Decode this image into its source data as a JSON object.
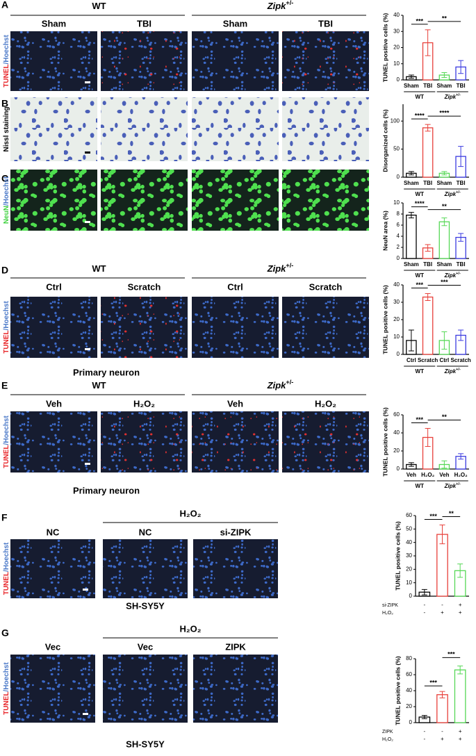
{
  "figure": {
    "panels": [
      {
        "letter": "A",
        "stain": [
          {
            "text": "TUNEL",
            "color": "#e8262a"
          },
          {
            "text": "/Hoechst",
            "color": "#4a78c8"
          }
        ],
        "groups": [
          {
            "name": "WT"
          },
          {
            "name": "Zipk",
            "sup": "+/-"
          }
        ],
        "conditions": [
          "Sham",
          "TBI",
          "Sham",
          "TBI"
        ]
      },
      {
        "letter": "B",
        "stain": [
          {
            "text": "Nissl staining",
            "color": "#000000"
          }
        ]
      },
      {
        "letter": "C",
        "stain": [
          {
            "text": "NeuN",
            "color": "#3fd23f"
          },
          {
            "text": "/Hoechst",
            "color": "#4a78c8"
          }
        ]
      },
      {
        "letter": "D",
        "stain": [
          {
            "text": "TUNEL",
            "color": "#e8262a"
          },
          {
            "text": "/Hoechst",
            "color": "#4a78c8"
          }
        ],
        "groups": [
          {
            "name": "WT"
          },
          {
            "name": "Zipk",
            "sup": "+/-"
          }
        ],
        "conditions": [
          "Ctrl",
          "Scratch",
          "Ctrl",
          "Scratch"
        ],
        "caption": "Primary neuron"
      },
      {
        "letter": "E",
        "stain": [
          {
            "text": "TUNEL",
            "color": "#e8262a"
          },
          {
            "text": "/Hoechst",
            "color": "#4a78c8"
          }
        ],
        "groups": [
          {
            "name": "WT"
          },
          {
            "name": "Zipk",
            "sup": "+/-"
          }
        ],
        "conditions": [
          "Veh",
          "H₂O₂",
          "Veh",
          "H₂O₂"
        ],
        "caption": "Primary neuron"
      },
      {
        "letter": "F",
        "stain": [
          {
            "text": "TUNEL",
            "color": "#e8262a"
          },
          {
            "text": "/Hoechst",
            "color": "#4a78c8"
          }
        ],
        "treatment": "H₂O₂",
        "conditions": [
          "NC",
          "NC",
          "si-ZIPK"
        ],
        "caption": "SH-SY5Y"
      },
      {
        "letter": "G",
        "stain": [
          {
            "text": "TUNEL",
            "color": "#e8262a"
          },
          {
            "text": "/Hoechst",
            "color": "#4a78c8"
          }
        ],
        "treatment": "H₂O₂",
        "conditions": [
          "Vec",
          "Vec",
          "ZIPK"
        ],
        "caption": "SH-SY5Y"
      }
    ]
  },
  "chart_data": [
    {
      "type": "bar",
      "ylabel": "TUNEL positive cells (%)",
      "categories": [
        "Sham",
        "TBI",
        "Sham",
        "TBI"
      ],
      "values": [
        2,
        23,
        3,
        8
      ],
      "errors": [
        1,
        8,
        1.5,
        4
      ],
      "colors": [
        "#000000",
        "#e8403a",
        "#55d855",
        "#3a3ae0"
      ],
      "ylim": [
        0,
        40
      ],
      "yticks": [
        0,
        10,
        20,
        30,
        40
      ],
      "groups": [
        {
          "name": "WT"
        },
        {
          "name": "Zipk",
          "sup": "+/-"
        }
      ],
      "significance": [
        "***",
        "**"
      ]
    },
    {
      "type": "bar",
      "ylabel": "Disorganized cells (%)",
      "categories": [
        "Sham",
        "TBI",
        "Sham",
        "TBI"
      ],
      "values": [
        7,
        88,
        7,
        37
      ],
      "errors": [
        3,
        6,
        3,
        18
      ],
      "colors": [
        "#000000",
        "#e8403a",
        "#55d855",
        "#3a3ae0"
      ],
      "ylim": [
        0,
        130
      ],
      "yticks": [
        0,
        50,
        100
      ],
      "groups": [
        {
          "name": "WT"
        },
        {
          "name": "Zipk",
          "sup": "+/-"
        }
      ],
      "significance": [
        "****",
        "****"
      ]
    },
    {
      "type": "bar",
      "ylabel": "NeuN area (%)",
      "categories": [
        "Sham",
        "TBI",
        "Sham",
        "TBI"
      ],
      "values": [
        7.8,
        1.9,
        6.6,
        3.8
      ],
      "errors": [
        0.5,
        0.6,
        0.7,
        0.7
      ],
      "colors": [
        "#000000",
        "#e8403a",
        "#55d855",
        "#3a3ae0"
      ],
      "ylim": [
        0,
        10
      ],
      "yticks": [
        0,
        2,
        4,
        6,
        8,
        10
      ],
      "groups": [
        {
          "name": "WT"
        },
        {
          "name": "Zipk",
          "sup": "+/-"
        }
      ],
      "significance": [
        "****",
        "**"
      ]
    },
    {
      "type": "bar",
      "ylabel": "TUNEL positive cells (%)",
      "categories": [
        "Ctrl",
        "Scratch",
        "Ctrl",
        "Scratch"
      ],
      "values": [
        8,
        33,
        8,
        11
      ],
      "errors": [
        6,
        2,
        5,
        3
      ],
      "colors": [
        "#000000",
        "#e8403a",
        "#55d855",
        "#3a3ae0"
      ],
      "ylim": [
        0,
        40
      ],
      "yticks": [
        0,
        10,
        20,
        30,
        40
      ],
      "groups": [
        {
          "name": "WT"
        },
        {
          "name": "Zipk",
          "sup": "+/-"
        }
      ],
      "significance": [
        "***",
        "***"
      ]
    },
    {
      "type": "bar",
      "ylabel": "TUNEL positive cells (%)",
      "categories": [
        "Veh",
        "H₂O₂",
        "Veh",
        "H₂O₂"
      ],
      "values": [
        5,
        35,
        5,
        14
      ],
      "errors": [
        2,
        10,
        4,
        3
      ],
      "colors": [
        "#000000",
        "#e8403a",
        "#55d855",
        "#3a3ae0"
      ],
      "ylim": [
        0,
        60
      ],
      "yticks": [
        0,
        20,
        40,
        60
      ],
      "groups": [
        {
          "name": "WT"
        },
        {
          "name": "Zipk",
          "sup": "+/-"
        }
      ],
      "significance": [
        "***",
        "**"
      ]
    },
    {
      "type": "bar",
      "ylabel": "TUNEL positive cells (%)",
      "categories": [
        null,
        null,
        null
      ],
      "values": [
        3,
        46,
        19
      ],
      "errors": [
        2,
        7,
        5
      ],
      "colors": [
        "#000000",
        "#e8403a",
        "#55d855"
      ],
      "ylim": [
        0,
        60
      ],
      "yticks": [
        0,
        10,
        20,
        30,
        40,
        50,
        60
      ],
      "conditions": [
        {
          "name": "si-ZIPK",
          "values": [
            "-",
            "-",
            "+"
          ]
        },
        {
          "name": "H₂O₂",
          "values": [
            "-",
            "+",
            "+"
          ]
        }
      ],
      "significance": [
        "***",
        "**"
      ]
    },
    {
      "type": "bar",
      "ylabel": "TUNEL positive cells (%)",
      "categories": [
        null,
        null,
        null
      ],
      "values": [
        7,
        35,
        66
      ],
      "errors": [
        2,
        4,
        5
      ],
      "colors": [
        "#000000",
        "#e8403a",
        "#55d855"
      ],
      "ylim": [
        0,
        80
      ],
      "yticks": [
        0,
        20,
        40,
        60,
        80
      ],
      "conditions": [
        {
          "name": "ZIPK",
          "values": [
            "-",
            "-",
            "+"
          ]
        },
        {
          "name": "H₂O₂",
          "values": [
            "-",
            "+",
            "+"
          ]
        }
      ],
      "significance": [
        "***",
        "***"
      ]
    }
  ]
}
